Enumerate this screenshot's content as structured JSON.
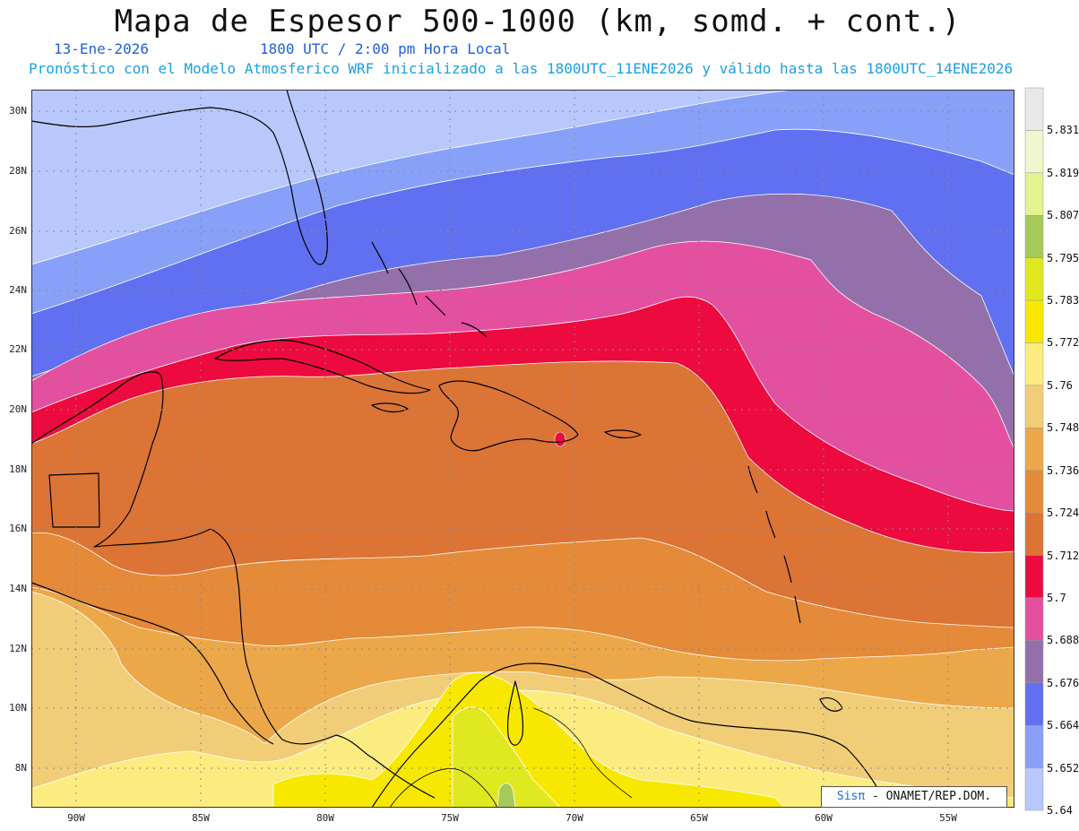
{
  "header": {
    "title": "Mapa de Espesor 500-1000 (km, somd. + cont.)",
    "date": "13-Ene-2026",
    "time": "1800 UTC / 2:00 pm Hora Local",
    "info": "Pronóstico con el Modelo Atmosferico WRF inicializado a las 1800UTC_11ENE2026 y válido hasta las  1800UTC_14ENE2026"
  },
  "credit": {
    "sis": "Sisπ",
    "rest": " - ONAMET/REP.DOM."
  },
  "axes": {
    "lat_labels": [
      "30N",
      "28N",
      "26N",
      "24N",
      "22N",
      "20N",
      "18N",
      "16N",
      "14N",
      "12N",
      "10N",
      "8N"
    ],
    "lon_labels": [
      "90W",
      "85W",
      "80W",
      "75W",
      "70W",
      "65W",
      "60W",
      "55W"
    ]
  },
  "legend": {
    "values": [
      "5.831",
      "5.819",
      "5.807",
      "5.795",
      "5.783",
      "5.772",
      "5.76",
      "5.748",
      "5.736",
      "5.724",
      "5.712",
      "5.7",
      "5.688",
      "5.676",
      "5.664",
      "5.652",
      "5.64"
    ],
    "colors": [
      "#e8e8e8",
      "#f2f6cc",
      "#e4f290",
      "#a6c95a",
      "#e0e820",
      "#f8e800",
      "#fcec80",
      "#f2cd78",
      "#eca848",
      "#e48a38",
      "#dc7436",
      "#ec0a3e",
      "#e450a0",
      "#9470aa",
      "#6070f0",
      "#88a0f8",
      "#b8c8fc"
    ]
  }
}
